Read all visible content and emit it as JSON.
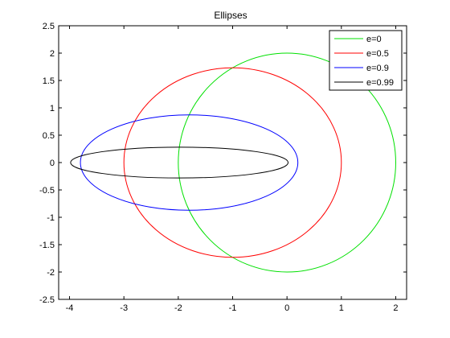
{
  "chart_data": {
    "type": "line",
    "title": "Ellipses",
    "xlabel": "",
    "ylabel": "",
    "xlim": [
      -4.2,
      2.2
    ],
    "ylim": [
      -2.5,
      2.5
    ],
    "xticks": [
      -4,
      -3,
      -2,
      -1,
      0,
      1,
      2
    ],
    "yticks": [
      -2.5,
      -2,
      -1.5,
      -1,
      -0.5,
      0,
      0.5,
      1,
      1.5,
      2,
      2.5
    ],
    "xtick_labels": [
      "-4",
      "-3",
      "-2",
      "-1",
      "0",
      "1",
      "2"
    ],
    "ytick_labels": [
      "-2.5",
      "-2",
      "-1.5",
      "-1",
      "-0.5",
      "0",
      "0.5",
      "1",
      "1.5",
      "2",
      "2.5"
    ],
    "grid": false,
    "legend_position": "top-right",
    "series": [
      {
        "name": "e=0",
        "color": "#00e000",
        "eccentricity": 0,
        "center": [
          0,
          0
        ],
        "semi_major": 2,
        "semi_minor": 2
      },
      {
        "name": "e=0.5",
        "color": "#ff0000",
        "eccentricity": 0.5,
        "center": [
          -1,
          0
        ],
        "semi_major": 2,
        "semi_minor": 1.732
      },
      {
        "name": "e=0.9",
        "color": "#0000ff",
        "eccentricity": 0.9,
        "center": [
          -1.8,
          0
        ],
        "semi_major": 2,
        "semi_minor": 0.872
      },
      {
        "name": "e=0.99",
        "color": "#000000",
        "eccentricity": 0.99,
        "center": [
          -1.98,
          0
        ],
        "semi_major": 2,
        "semi_minor": 0.282
      }
    ]
  }
}
